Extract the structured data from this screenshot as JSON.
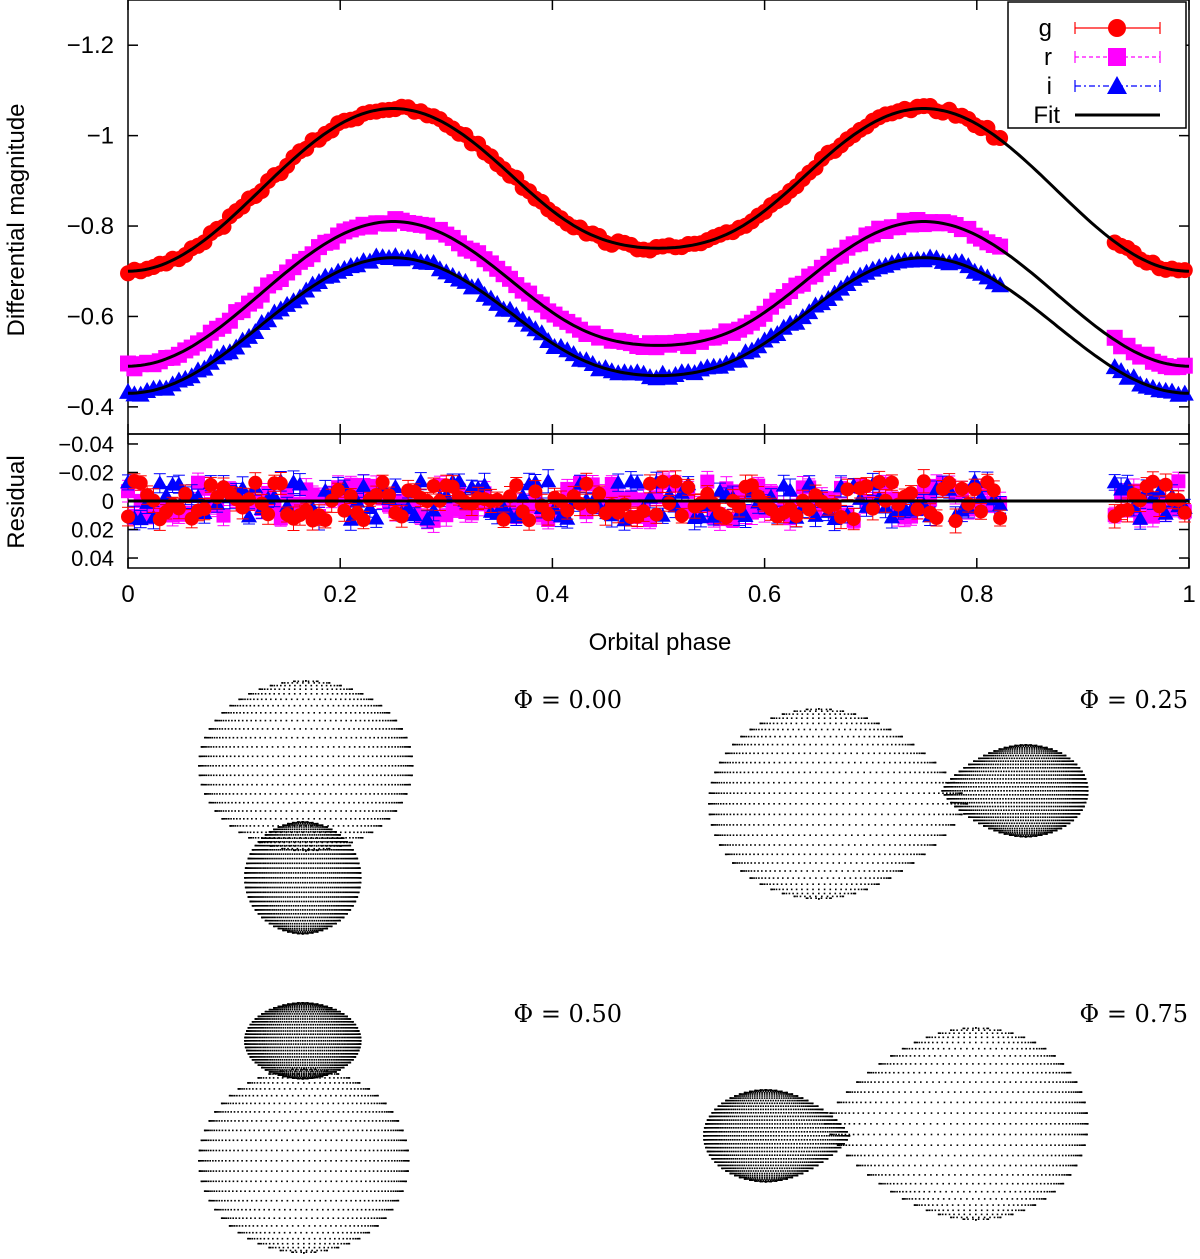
{
  "chart_data": [
    {
      "type": "scatter",
      "panel": "light-curve",
      "title": "",
      "xlabel": "",
      "ylabel": "Differential magnitude",
      "xlim": [
        0,
        1
      ],
      "ylim": [
        -1.3,
        -0.34
      ],
      "y_inverted": true,
      "xticks": [
        0,
        0.2,
        0.4,
        0.6,
        0.8,
        1
      ],
      "xtick_labels": [
        "0",
        "0.2",
        "0.4",
        "0.6",
        "0.8",
        "1"
      ],
      "yticks": [
        -1.2,
        -1,
        -0.8,
        -0.6,
        -0.4
      ],
      "ytick_labels": [
        "−1.2",
        "−1",
        "−0.8",
        "−0.6",
        "−0.4"
      ],
      "legend_position": "top-right",
      "legend": [
        "g",
        "r",
        "i",
        "Fit"
      ],
      "series": [
        {
          "name": "g",
          "color": "#ff0000",
          "marker": "circle",
          "model": {
            "base": -0.7,
            "a1": 0.36,
            "a2": -0.3,
            "a0": 0.0
          }
        },
        {
          "name": "r",
          "color": "#ff00ff",
          "marker": "square",
          "model": {
            "base": -0.49,
            "a1": 0.32,
            "a2": -0.27,
            "a0": 0.0
          }
        },
        {
          "name": "i",
          "color": "#0000ff",
          "marker": "triangle",
          "model": {
            "base": -0.43,
            "a1": 0.3,
            "a2": -0.23,
            "a0": 0.0
          }
        }
      ],
      "phase_gap": [
        0.825,
        0.93
      ],
      "sample_phases_step": 0.006,
      "fit": {
        "name": "Fit",
        "color": "#000000"
      }
    },
    {
      "type": "scatter",
      "panel": "residual",
      "xlabel": "Orbital phase",
      "ylabel": "Residual",
      "xlim": [
        0,
        1
      ],
      "ylim": [
        0.047,
        -0.047
      ],
      "y_inverted": true,
      "yticks": [
        -0.04,
        -0.02,
        0,
        0.02,
        0.04
      ],
      "ytick_labels": [
        "−0.04",
        "−0.02",
        "0",
        "0.02",
        "0.04"
      ],
      "residual_amplitude": 0.014,
      "zero_line": 0
    }
  ],
  "models": {
    "labels": [
      "Φ = 0.00",
      "Φ = 0.25",
      "Φ = 0.50",
      "Φ = 0.75"
    ],
    "phases": [
      0.0,
      0.25,
      0.5,
      0.75
    ]
  },
  "colors": {
    "axis": "#000000",
    "g": "#ff0000",
    "r": "#ff00ff",
    "i": "#0000ff",
    "fit": "#000000"
  }
}
